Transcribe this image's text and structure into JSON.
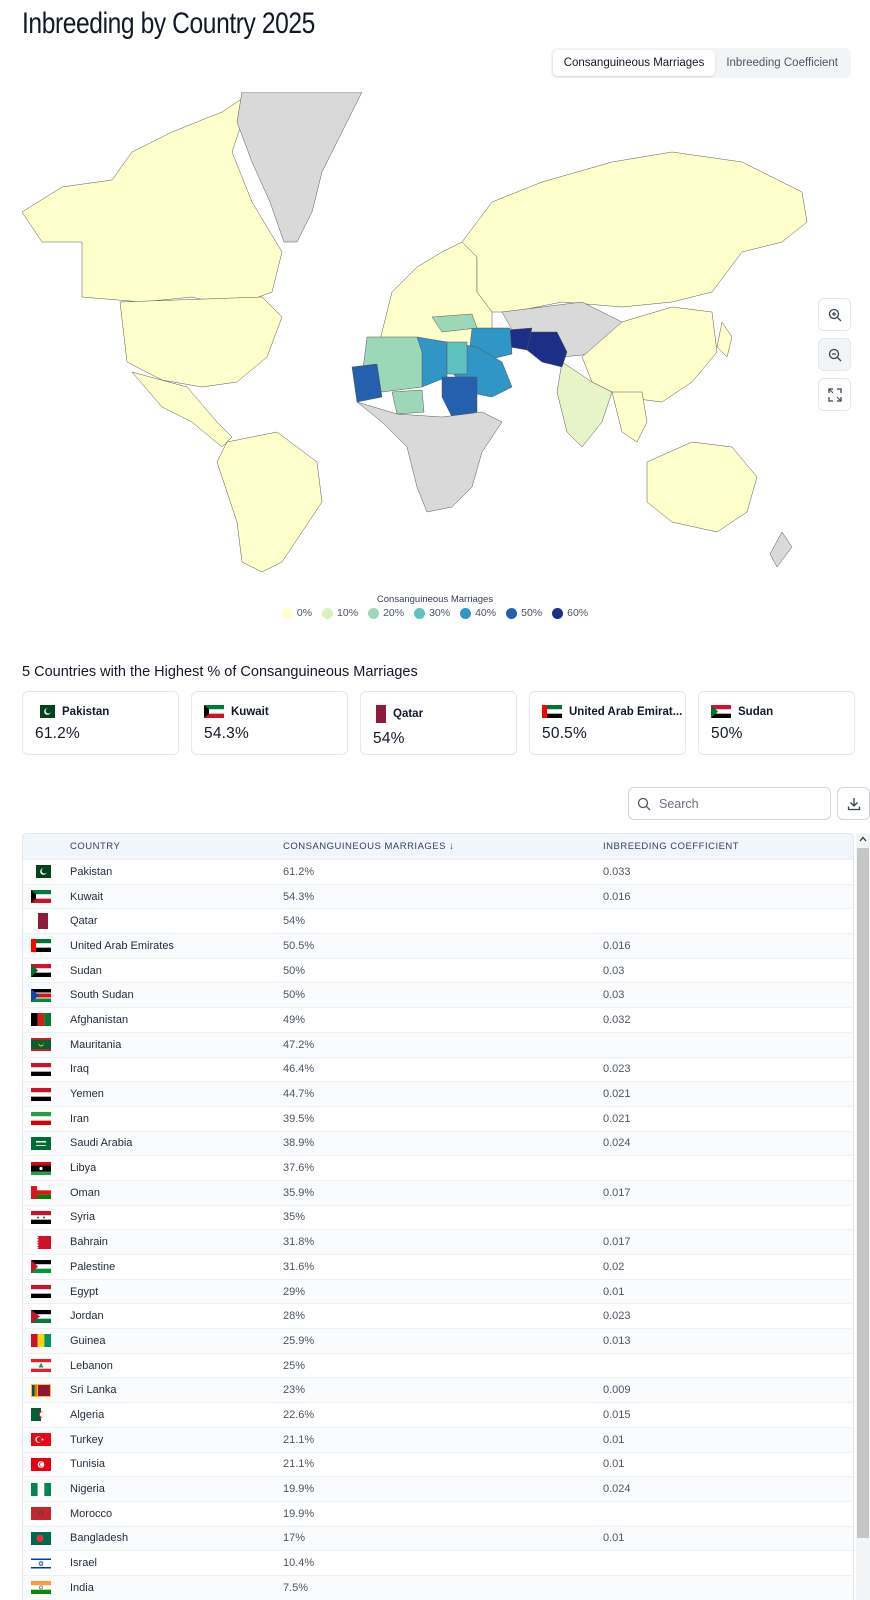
{
  "page": {
    "title": "Inbreeding by Country 2025"
  },
  "toggle": {
    "options": [
      "Consanguineous Marriages",
      "Inbreeding Coefficient"
    ],
    "active": 0
  },
  "map": {
    "legend_title": "Consanguineous Marriages",
    "legend": [
      {
        "label": "0%",
        "color": "#ffffcc"
      },
      {
        "label": "10%",
        "color": "#d9f0b8"
      },
      {
        "label": "20%",
        "color": "#9cd8b7"
      },
      {
        "label": "30%",
        "color": "#5fc1c0"
      },
      {
        "label": "40%",
        "color": "#3096c6"
      },
      {
        "label": "50%",
        "color": "#2560ae"
      },
      {
        "label": "60%",
        "color": "#1b2f86"
      }
    ],
    "no_data_color": "#d9d9d9",
    "controls": [
      "zoom-in-icon",
      "zoom-out-icon",
      "fullscreen-icon"
    ]
  },
  "top5": {
    "title": "5 Countries with the Highest % of Consanguineous Marriages",
    "cards": [
      {
        "country": "Pakistan",
        "value": "61.2%"
      },
      {
        "country": "Kuwait",
        "value": "54.3%"
      },
      {
        "country": "Qatar",
        "value": "54%"
      },
      {
        "country": "United Arab Emirat...",
        "value": "50.5%"
      },
      {
        "country": "Sudan",
        "value": "50%"
      }
    ]
  },
  "search": {
    "placeholder": "Search",
    "value": ""
  },
  "table": {
    "headers": {
      "country": "COUNTRY",
      "cm": "CONSANGUINEOUS MARRIAGES ↓",
      "ic": "INBREEDING COEFFICIENT"
    },
    "rows": [
      {
        "country": "Pakistan",
        "cm": "61.2%",
        "ic": "0.033"
      },
      {
        "country": "Kuwait",
        "cm": "54.3%",
        "ic": "0.016"
      },
      {
        "country": "Qatar",
        "cm": "54%",
        "ic": ""
      },
      {
        "country": "United Arab Emirates",
        "cm": "50.5%",
        "ic": "0.016"
      },
      {
        "country": "Sudan",
        "cm": "50%",
        "ic": "0.03"
      },
      {
        "country": "South Sudan",
        "cm": "50%",
        "ic": "0.03"
      },
      {
        "country": "Afghanistan",
        "cm": "49%",
        "ic": "0.032"
      },
      {
        "country": "Mauritania",
        "cm": "47.2%",
        "ic": ""
      },
      {
        "country": "Iraq",
        "cm": "46.4%",
        "ic": "0.023"
      },
      {
        "country": "Yemen",
        "cm": "44.7%",
        "ic": "0.021"
      },
      {
        "country": "Iran",
        "cm": "39.5%",
        "ic": "0.021"
      },
      {
        "country": "Saudi Arabia",
        "cm": "38.9%",
        "ic": "0.024"
      },
      {
        "country": "Libya",
        "cm": "37.6%",
        "ic": ""
      },
      {
        "country": "Oman",
        "cm": "35.9%",
        "ic": "0.017"
      },
      {
        "country": "Syria",
        "cm": "35%",
        "ic": ""
      },
      {
        "country": "Bahrain",
        "cm": "31.8%",
        "ic": "0.017"
      },
      {
        "country": "Palestine",
        "cm": "31.6%",
        "ic": "0.02"
      },
      {
        "country": "Egypt",
        "cm": "29%",
        "ic": "0.01"
      },
      {
        "country": "Jordan",
        "cm": "28%",
        "ic": "0.023"
      },
      {
        "country": "Guinea",
        "cm": "25.9%",
        "ic": "0.013"
      },
      {
        "country": "Lebanon",
        "cm": "25%",
        "ic": ""
      },
      {
        "country": "Sri Lanka",
        "cm": "23%",
        "ic": "0.009"
      },
      {
        "country": "Algeria",
        "cm": "22.6%",
        "ic": "0.015"
      },
      {
        "country": "Turkey",
        "cm": "21.1%",
        "ic": "0.01"
      },
      {
        "country": "Tunisia",
        "cm": "21.1%",
        "ic": "0.01"
      },
      {
        "country": "Nigeria",
        "cm": "19.9%",
        "ic": "0.024"
      },
      {
        "country": "Morocco",
        "cm": "19.9%",
        "ic": ""
      },
      {
        "country": "Bangladesh",
        "cm": "17%",
        "ic": "0.01"
      },
      {
        "country": "Israel",
        "cm": "10.4%",
        "ic": ""
      },
      {
        "country": "India",
        "cm": "7.5%",
        "ic": ""
      }
    ]
  }
}
